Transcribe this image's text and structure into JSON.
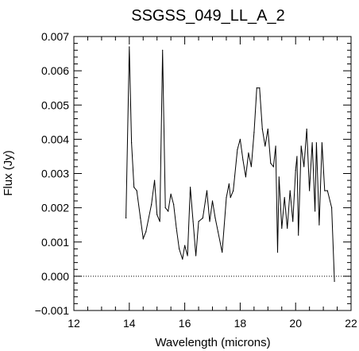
{
  "chart_data": {
    "type": "line",
    "title": "SSGSS_049_LL_A_2",
    "xlabel": "Wavelength (microns)",
    "ylabel": "Flux (Jy)",
    "xlim": [
      12,
      22
    ],
    "ylim": [
      -0.001,
      0.007
    ],
    "x_ticks": [
      12,
      14,
      16,
      18,
      20,
      22
    ],
    "x_tick_labels": [
      "12",
      "14",
      "16",
      "18",
      "20",
      "22"
    ],
    "y_ticks": [
      -0.001,
      0.0,
      0.001,
      0.002,
      0.003,
      0.004,
      0.005,
      0.006,
      0.007
    ],
    "y_tick_labels": [
      "−0.001",
      "0.000",
      "0.001",
      "0.002",
      "0.003",
      "0.004",
      "0.005",
      "0.006",
      "0.007"
    ],
    "reference_line": {
      "y": 0.0,
      "style": "dotted"
    },
    "grid": false,
    "series": [
      {
        "color": "#000000",
        "x": [
          13.88,
          14.0,
          14.08,
          14.17,
          14.27,
          14.4,
          14.5,
          14.6,
          14.8,
          14.91,
          15.0,
          15.1,
          15.2,
          15.3,
          15.4,
          15.5,
          15.6,
          15.7,
          15.8,
          15.92,
          16.0,
          16.1,
          16.2,
          16.3,
          16.4,
          16.5,
          16.65,
          16.8,
          16.9,
          17.0,
          17.1,
          17.2,
          17.35,
          17.5,
          17.6,
          17.65,
          17.75,
          17.9,
          18.0,
          18.1,
          18.2,
          18.3,
          18.4,
          18.5,
          18.6,
          18.7,
          18.8,
          18.9,
          19.0,
          19.1,
          19.2,
          19.28,
          19.35,
          19.4,
          19.5,
          19.6,
          19.7,
          19.8,
          19.9,
          20.0,
          20.05,
          20.1,
          20.2,
          20.3,
          20.4,
          20.5,
          20.6,
          20.7,
          20.75,
          20.85,
          20.95,
          21.05,
          21.15,
          21.3,
          21.4
        ],
        "y": [
          0.0017,
          0.0067,
          0.0039,
          0.0026,
          0.0025,
          0.0017,
          0.0011,
          0.0013,
          0.0021,
          0.0028,
          0.0018,
          0.0016,
          0.0066,
          0.002,
          0.0019,
          0.0024,
          0.0021,
          0.0014,
          0.0008,
          0.0005,
          0.0009,
          0.0006,
          0.0026,
          0.0016,
          0.0006,
          0.0016,
          0.0017,
          0.0025,
          0.0016,
          0.0022,
          0.0017,
          0.0013,
          0.0007,
          0.0023,
          0.0027,
          0.0023,
          0.0025,
          0.0037,
          0.004,
          0.0034,
          0.0029,
          0.0036,
          0.0032,
          0.0042,
          0.0055,
          0.0055,
          0.0043,
          0.0038,
          0.0043,
          0.0033,
          0.0032,
          0.0038,
          0.0007,
          0.0029,
          0.0014,
          0.0023,
          0.0014,
          0.0025,
          0.0016,
          0.0031,
          0.0035,
          0.0012,
          0.0038,
          0.0032,
          0.0043,
          0.0025,
          0.0039,
          0.0019,
          0.0039,
          0.0015,
          0.0039,
          0.0025,
          0.0025,
          0.002,
          -0.00015
        ]
      }
    ]
  }
}
